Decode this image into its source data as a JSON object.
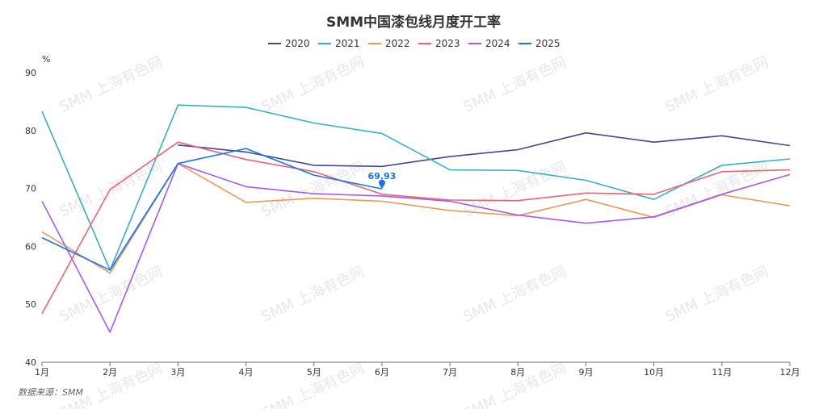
{
  "chart_data": {
    "type": "line",
    "title": "SMM中国漆包线月度开工率",
    "ylabel": "%",
    "ylim": [
      40,
      90
    ],
    "yticks": [
      40,
      50,
      60,
      70,
      80,
      90
    ],
    "categories": [
      "1月",
      "2月",
      "3月",
      "4月",
      "5月",
      "6月",
      "7月",
      "8月",
      "9月",
      "10月",
      "11月",
      "12月"
    ],
    "series": [
      {
        "name": "2020",
        "color": "#3f4a8a",
        "values": [
          null,
          null,
          77.5,
          76.3,
          74.0,
          73.8,
          75.5,
          76.7,
          79.6,
          78.0,
          79.1,
          77.4
        ]
      },
      {
        "name": "2021",
        "color": "#3aafbd",
        "values": [
          83.3,
          55.9,
          84.4,
          84.0,
          81.3,
          79.5,
          73.2,
          73.1,
          71.4,
          68.1,
          74.0,
          75.1
        ]
      },
      {
        "name": "2022",
        "color": "#eb9a5a",
        "values": [
          62.5,
          55.4,
          74.3,
          67.6,
          68.3,
          67.8,
          66.2,
          65.3,
          68.1,
          65.0,
          68.9,
          67.0
        ]
      },
      {
        "name": "2023",
        "color": "#ec6472",
        "values": [
          48.4,
          69.8,
          78.0,
          75.0,
          72.9,
          69.0,
          68.0,
          67.9,
          69.2,
          69.0,
          72.9,
          73.2
        ]
      },
      {
        "name": "2024",
        "color": "#a25cf0",
        "values": [
          67.8,
          45.2,
          74.3,
          70.3,
          69.1,
          68.7,
          67.8,
          65.4,
          64.0,
          65.1,
          69.0,
          72.4
        ]
      },
      {
        "name": "2025",
        "color": "#1a73e8",
        "values": [
          61.5,
          55.9,
          74.3,
          76.9,
          72.3,
          69.93,
          null,
          null,
          null,
          null,
          null,
          null
        ]
      }
    ],
    "annotations": [
      {
        "series": "2025",
        "category": "6月",
        "value": 69.93,
        "label": "69.93"
      }
    ],
    "legend_position": "top-center",
    "grid": false
  },
  "source": "数据来源：SMM",
  "watermark": "SMM 上海有色网"
}
